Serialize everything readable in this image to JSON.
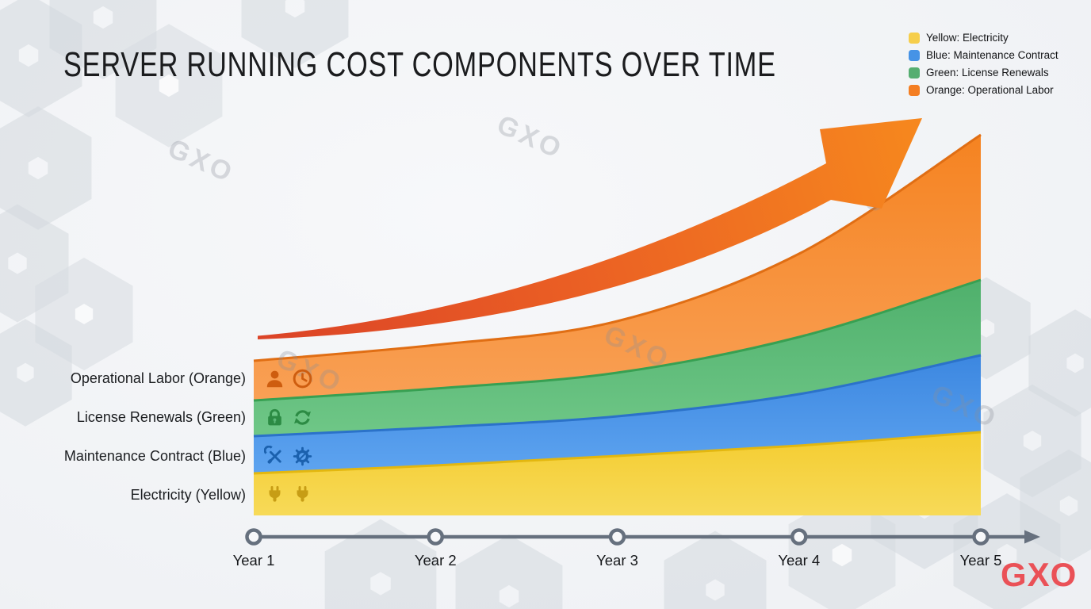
{
  "title": "SERVER RUNNING COST COMPONENTS OVER TIME",
  "legend": {
    "items": [
      {
        "label": "Yellow: Electricity",
        "color": "#F6CE4B"
      },
      {
        "label": "Blue: Maintenance Contract",
        "color": "#4693E6"
      },
      {
        "label": "Green: License Renewals",
        "color": "#55AE71"
      },
      {
        "label": "Orange: Operational Labor",
        "color": "#F47E22"
      }
    ]
  },
  "row_labels": [
    {
      "label": "Operational Labor (Orange)",
      "icons": [
        "user-icon",
        "clock-icon"
      ],
      "icon_color": "#CE5D0F"
    },
    {
      "label": "License Renewals (Green)",
      "icons": [
        "lock-icon",
        "refresh-icon"
      ],
      "icon_color": "#2C8B44"
    },
    {
      "label": "Maintenance Contract (Blue)",
      "icons": [
        "tools-icon",
        "gear-icon"
      ],
      "icon_color": "#1B61AE"
    },
    {
      "label": "Electricity (Yellow)",
      "icons": [
        "plug-icon",
        "plug-icon"
      ],
      "icon_color": "#C79D15"
    }
  ],
  "chart_data": {
    "type": "area",
    "stacked": true,
    "title": "SERVER RUNNING COST COMPONENTS OVER TIME",
    "xlabel": "",
    "ylabel": "",
    "grid": false,
    "legend_position": "top-right",
    "categories": [
      "Year 1",
      "Year 2",
      "Year 3",
      "Year 4",
      "Year 5"
    ],
    "series": [
      {
        "name": "Electricity",
        "color_name": "Yellow",
        "values": [
          5.3,
          6.3,
          7.5,
          8.8,
          10.5
        ],
        "fill": "#F4CC2F",
        "fill_light": "#F7DA58",
        "edge": "#E3B70F"
      },
      {
        "name": "Maintenance Contract",
        "color_name": "Blue",
        "values": [
          4.7,
          4.8,
          5.0,
          6.5,
          9.7
        ],
        "fill": "#3C87E0",
        "fill_light": "#5EA4F0",
        "edge": "#2B72C9"
      },
      {
        "name": "License Renewals",
        "color_name": "Green",
        "values": [
          4.5,
          4.9,
          5.5,
          7.2,
          9.5
        ],
        "fill": "#4FB06C",
        "fill_light": "#6FC787",
        "edge": "#37A052"
      },
      {
        "name": "Operational Labor",
        "color_name": "Orange",
        "values": [
          5.0,
          5.5,
          6.5,
          10.5,
          18.3
        ],
        "fill": "#F58321",
        "fill_light": "#F9A055",
        "edge": "#E06E14"
      }
    ],
    "annotations": [
      {
        "type": "trend-arrow",
        "description": "upward accelerating cost arrow",
        "colors": [
          "#DB4327",
          "#F6871E"
        ]
      }
    ]
  },
  "watermark": {
    "text": "GXO",
    "color": "#8A8F99"
  },
  "logo": {
    "text": "GXO",
    "color": "#EA5157"
  },
  "timeline": {
    "color": "#66707E"
  }
}
